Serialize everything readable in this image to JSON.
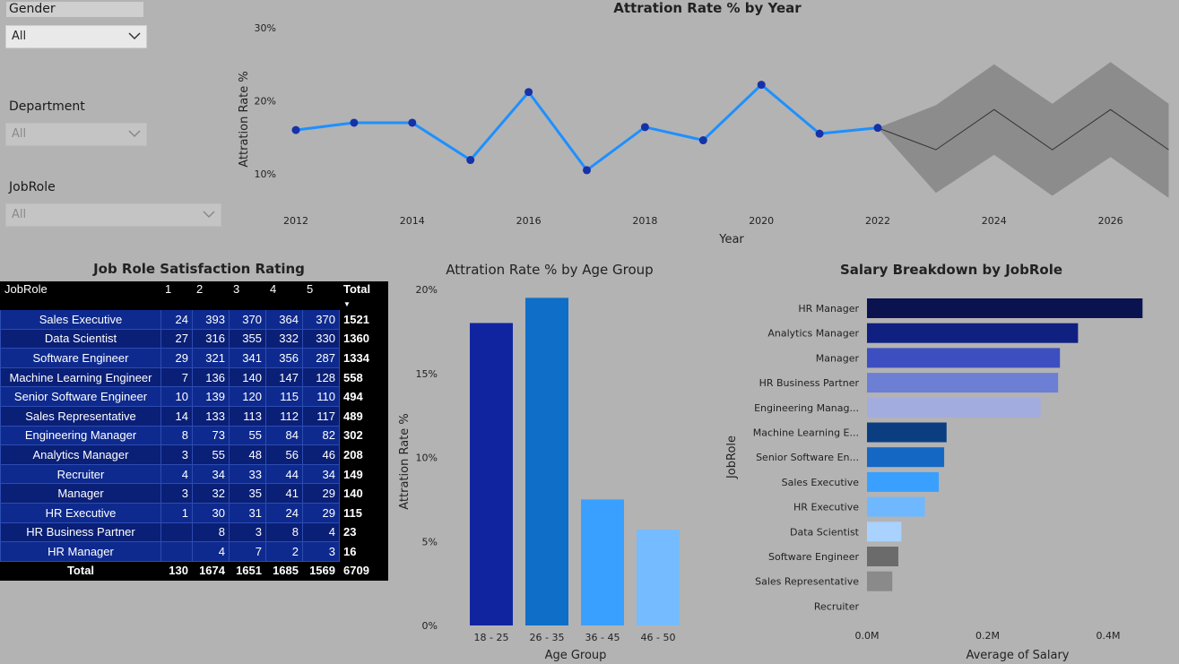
{
  "slicers": [
    {
      "label": "Gender",
      "value": "All"
    },
    {
      "label": "Department",
      "value": "All"
    },
    {
      "label": "JobRole",
      "value": "All"
    }
  ],
  "colors": {
    "line": "#1e90ff",
    "marker": "#1632a8",
    "forecast_band": "#8c8c8c",
    "forecast_line": "#333333"
  },
  "line_chart": {
    "title": "Attration Rate % by Year",
    "chart_data": {
      "type": "line",
      "title": "Attration Rate % by Year",
      "xlabel": "Year",
      "ylabel": "Attration Rate %",
      "x_ticks": [
        "2012",
        "2014",
        "2016",
        "2018",
        "2020",
        "2022",
        "2024",
        "2026"
      ],
      "y_ticks": [
        "10%",
        "20%",
        "30%"
      ],
      "ylim": [
        8,
        30
      ],
      "x": [
        2012,
        2013,
        2014,
        2015,
        2016,
        2017,
        2018,
        2019,
        2020,
        2021,
        2022
      ],
      "values": [
        16.0,
        17.0,
        17.0,
        11.9,
        21.2,
        10.5,
        16.4,
        14.6,
        22.2,
        15.5,
        16.3
      ],
      "forecast": {
        "x": [
          2022,
          2023,
          2024,
          2025,
          2026,
          2027
        ],
        "values": [
          16.3,
          13.3,
          18.8,
          13.3,
          18.8,
          13.3
        ],
        "upper": [
          16.3,
          19.4,
          25.0,
          19.6,
          25.3,
          19.6
        ],
        "lower": [
          16.3,
          7.4,
          12.6,
          7.0,
          12.3,
          6.7
        ]
      }
    }
  },
  "matrix": {
    "title": "Job Role Satisfaction Rating",
    "headers": [
      "JobRole",
      "1",
      "2",
      "3",
      "4",
      "5",
      "Total"
    ],
    "rows": [
      [
        "Sales Executive",
        "24",
        "393",
        "370",
        "364",
        "370",
        "1521"
      ],
      [
        "Data Scientist",
        "27",
        "316",
        "355",
        "332",
        "330",
        "1360"
      ],
      [
        "Software Engineer",
        "29",
        "321",
        "341",
        "356",
        "287",
        "1334"
      ],
      [
        "Machine Learning Engineer",
        "7",
        "136",
        "140",
        "147",
        "128",
        "558"
      ],
      [
        "Senior Software Engineer",
        "10",
        "139",
        "120",
        "115",
        "110",
        "494"
      ],
      [
        "Sales Representative",
        "14",
        "133",
        "113",
        "112",
        "117",
        "489"
      ],
      [
        "Engineering Manager",
        "8",
        "73",
        "55",
        "84",
        "82",
        "302"
      ],
      [
        "Analytics Manager",
        "3",
        "55",
        "48",
        "56",
        "46",
        "208"
      ],
      [
        "Recruiter",
        "4",
        "34",
        "33",
        "44",
        "34",
        "149"
      ],
      [
        "Manager",
        "3",
        "32",
        "35",
        "41",
        "29",
        "140"
      ],
      [
        "HR Executive",
        "1",
        "30",
        "31",
        "24",
        "29",
        "115"
      ],
      [
        "HR Business Partner",
        "",
        "8",
        "3",
        "8",
        "4",
        "23"
      ],
      [
        "HR Manager",
        "",
        "4",
        "7",
        "2",
        "3",
        "16"
      ]
    ],
    "total": [
      "Total",
      "130",
      "1674",
      "1651",
      "1685",
      "1569",
      "6709"
    ]
  },
  "age_chart": {
    "title": "Attration Rate % by Age Group",
    "chart_data": {
      "type": "bar",
      "title": "Attration Rate % by Age Group",
      "xlabel": "Age Group",
      "ylabel": "Attration Rate %",
      "categories": [
        "18 - 25",
        "26 - 35",
        "36 - 45",
        "46 - 50"
      ],
      "values": [
        18.0,
        19.5,
        7.5,
        5.7
      ],
      "colors": [
        "#1024a0",
        "#0e6ec8",
        "#3aa0ff",
        "#74bbff"
      ],
      "y_ticks": [
        "0%",
        "5%",
        "10%",
        "15%",
        "20%"
      ],
      "ylim": [
        0,
        20
      ]
    }
  },
  "salary_chart": {
    "title": "Salary Breakdown by JobRole",
    "chart_data": {
      "type": "bar",
      "title": "Salary Breakdown by JobRole",
      "xlabel": "Average of Salary",
      "ylabel": "JobRole",
      "categories": [
        "HR Manager",
        "Analytics Manager",
        "Manager",
        "HR Business Partner",
        "Engineering Manag...",
        "Machine Learning E...",
        "Senior Software En...",
        "Sales Executive",
        "HR Executive",
        "Data Scientist",
        "Software Engineer",
        "Sales Representative",
        "Recruiter"
      ],
      "values": [
        457000,
        350000,
        320000,
        317000,
        288000,
        132000,
        128000,
        119000,
        96000,
        57000,
        52000,
        42000,
        0
      ],
      "colors": [
        "#0a1250",
        "#102080",
        "#3d4fc0",
        "#6c7fd4",
        "#a3acdf",
        "#0b3e80",
        "#1468c4",
        "#3aa0ff",
        "#6fb8ff",
        "#a9d2ff",
        "#6b6b6b",
        "#8a8a8a",
        "#b3b3b3"
      ],
      "x_ticks": [
        "0.0M",
        "0.2M",
        "0.4M"
      ],
      "xlim": [
        0,
        460000
      ]
    }
  }
}
